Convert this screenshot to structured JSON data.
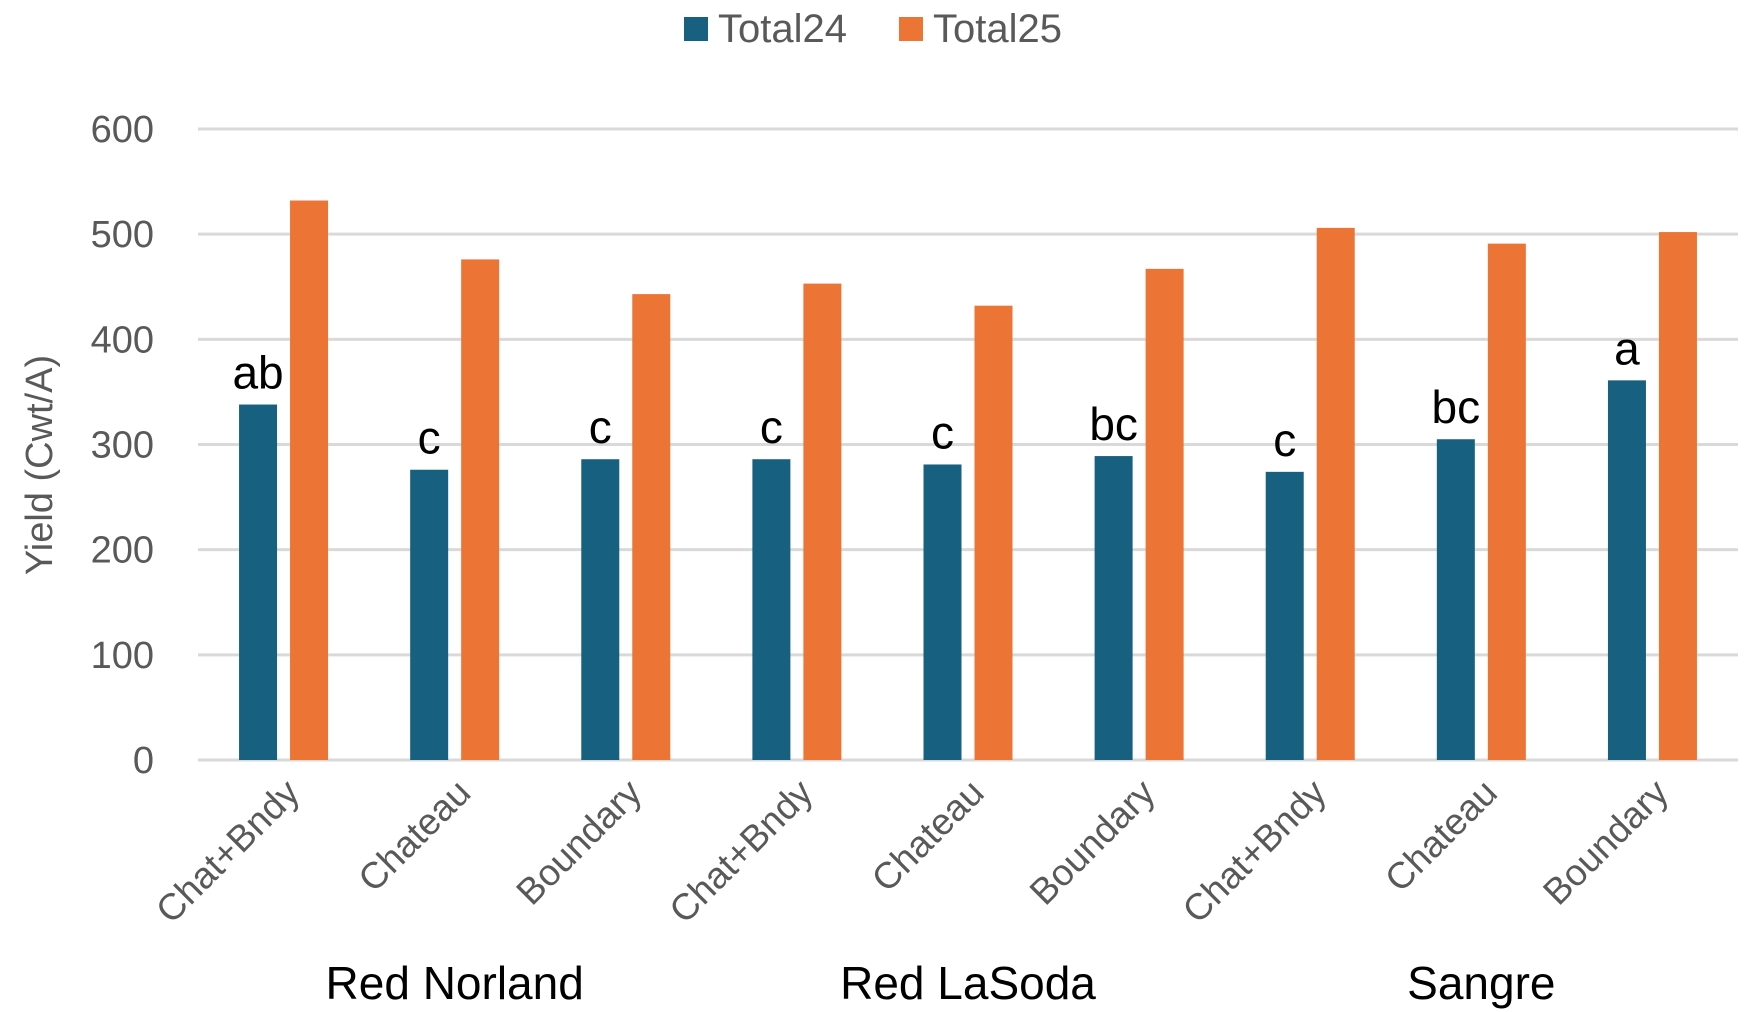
{
  "chart_data": {
    "type": "bar",
    "categories": [
      "Chat+Bndy",
      "Chateau",
      "Boundary",
      "Chat+Bndy",
      "Chateau",
      "Boundary",
      "Chat+Bndy",
      "Chateau",
      "Boundary"
    ],
    "groups": [
      {
        "label": "Red Norland",
        "categories": [
          0,
          1,
          2
        ]
      },
      {
        "label": "Red LaSoda",
        "categories": [
          3,
          4,
          5
        ]
      },
      {
        "label": "Sangre",
        "categories": [
          6,
          7,
          8
        ]
      }
    ],
    "series": [
      {
        "name": "Total24",
        "color": "#17607f",
        "values": [
          338,
          276,
          286,
          286,
          281,
          289,
          274,
          305,
          361
        ]
      },
      {
        "name": "Total25",
        "color": "#ec7434",
        "values": [
          532,
          476,
          443,
          453,
          432,
          467,
          506,
          491,
          502
        ]
      }
    ],
    "annotations": [
      "ab",
      "c",
      "c",
      "c",
      "c",
      "bc",
      "c",
      "bc",
      "a"
    ],
    "title": "",
    "xlabel": "",
    "ylabel": "Yield (Cwt/A)",
    "ylim": [
      0,
      600
    ],
    "yticks": [
      "0",
      "100",
      "200",
      "300",
      "400",
      "500",
      "600"
    ],
    "grid": true,
    "legend_position": "top"
  }
}
